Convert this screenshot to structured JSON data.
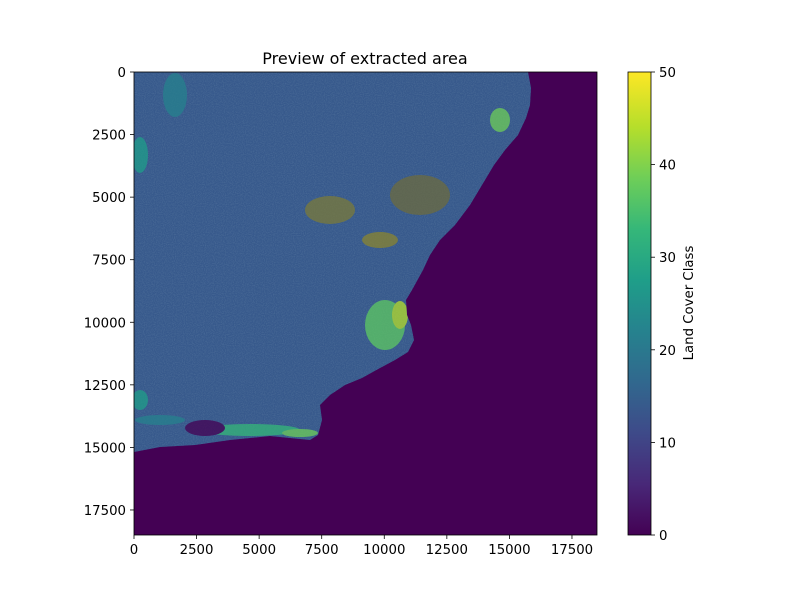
{
  "chart_data": {
    "type": "heatmap",
    "title": "Preview of extracted area",
    "xlabel": "",
    "ylabel": "",
    "xlim": [
      0,
      18500
    ],
    "ylim": [
      18500,
      0
    ],
    "x_ticks": [
      0,
      2500,
      5000,
      7500,
      10000,
      12500,
      15000,
      17500
    ],
    "y_ticks": [
      0,
      2500,
      5000,
      7500,
      10000,
      12500,
      15000,
      17500
    ],
    "x_tick_labels": [
      "0",
      "2500",
      "5000",
      "7500",
      "10000",
      "12500",
      "15000",
      "17500"
    ],
    "y_tick_labels": [
      "0",
      "2500",
      "5000",
      "7500",
      "10000",
      "12500",
      "15000",
      "17500"
    ],
    "colormap": "viridis",
    "colorbar": {
      "label": "Land Cover Class",
      "range": [
        0,
        50
      ],
      "ticks": [
        0,
        10,
        20,
        30,
        40,
        50
      ],
      "tick_labels": [
        "0",
        "10",
        "20",
        "30",
        "40",
        "50"
      ]
    },
    "background_value": 0,
    "dominant_land_value": 12,
    "grid": false
  },
  "colors": {
    "viridis": [
      "#440154",
      "#482878",
      "#3e4a89",
      "#31688e",
      "#26828e",
      "#1f9e89",
      "#35b779",
      "#6ece58",
      "#b5de2b",
      "#fde725"
    ]
  }
}
